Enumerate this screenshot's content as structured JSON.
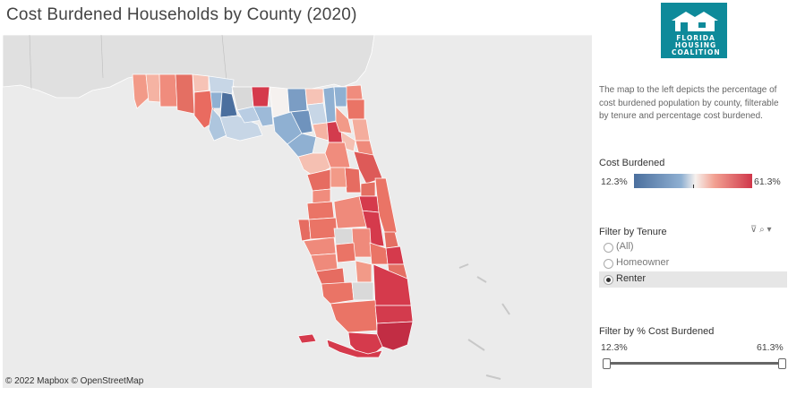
{
  "title": "Cost Burdened Households by County (2020)",
  "map": {
    "attribution": "© 2022 Mapbox  © OpenStreetMap",
    "land_color": "#e0e0e0",
    "water_color": "#ebebeb",
    "no_data_color": "#d9d9d9"
  },
  "logo": {
    "line1": "FLORIDA",
    "line2": "HOUSING",
    "line3": "COALITION",
    "color": "#0e8a9a"
  },
  "description": "The map to the left depicts the percentage of cost burdened population by county, filterable by tenure and percentage cost burdened.",
  "legend": {
    "title": "Cost Burdened",
    "min": "12.3%",
    "max": "61.3%",
    "colors": [
      "#4b6f9e",
      "#8fb0d2",
      "#f6f1ee",
      "#f2a192",
      "#d0374a"
    ]
  },
  "tenure_filter": {
    "title": "Filter by Tenure",
    "options": [
      "(All)",
      "Homeowner",
      "Renter"
    ],
    "selected": "Renter"
  },
  "pct_filter": {
    "title": "Filter by % Cost Burdened",
    "min": "12.3%",
    "max": "61.3%"
  }
}
